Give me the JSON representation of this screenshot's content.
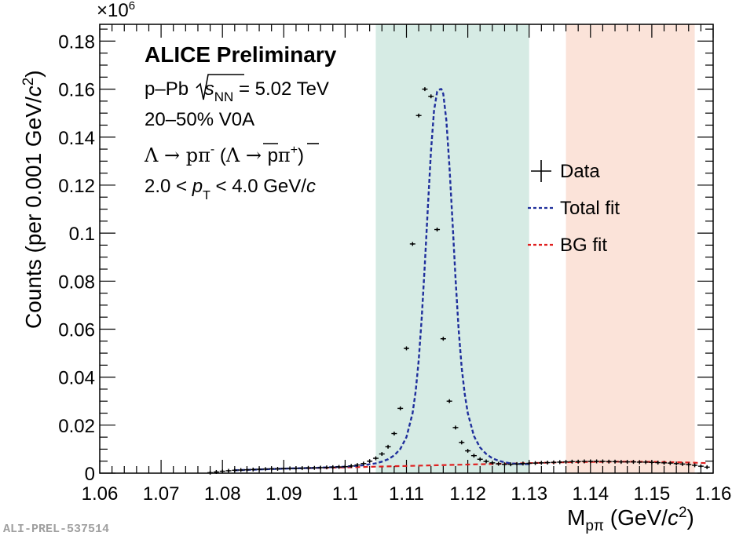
{
  "chart_data": {
    "type": "scatter",
    "xlabel_main": "M",
    "xlabel_sub": "pπ",
    "xlabel_unit_prefix": " (GeV/",
    "xlabel_unit_c": "c",
    "xlabel_unit_suffix": ")",
    "ylabel_main": "Counts (per 0.001 GeV/",
    "ylabel_c": "c",
    "ylabel_suffix": ")",
    "y_multiplier_prefix": "×10",
    "y_multiplier_exp": "6",
    "xlim": [
      1.06,
      1.16
    ],
    "ylim": [
      0,
      0.187
    ],
    "x_ticks": [
      "1.06",
      "1.07",
      "1.08",
      "1.09",
      "1.1",
      "1.11",
      "1.12",
      "1.13",
      "1.14",
      "1.15",
      "1.16"
    ],
    "y_ticks": [
      "0",
      "0.02",
      "0.04",
      "0.06",
      "0.08",
      "0.1",
      "0.12",
      "0.14",
      "0.16",
      "0.18"
    ],
    "annotations": {
      "title": "ALICE Preliminary",
      "system_prefix": "p–Pb ",
      "system_s": "s",
      "system_nn": "NN",
      "system_suffix": " = 5.02 TeV",
      "centrality": "20–50% V0A",
      "decay_lambda": "Λ → pπ",
      "decay_minus": "-",
      "decay_anti_open": " (",
      "decay_anti_lambda": "Λ",
      "decay_arrow": " → ",
      "decay_pbar": "p",
      "decay_piplus": "π",
      "decay_plus": "+",
      "decay_close": ")",
      "pt_prefix": "2.0 < ",
      "pt_p": "p",
      "pt_sub": "T",
      "pt_suffix": " < 4.0 GeV/",
      "pt_c": "c"
    },
    "bands": [
      {
        "name": "signal region",
        "x": [
          1.105,
          1.13
        ],
        "color": "#d6ebe4"
      },
      {
        "name": "sideband",
        "x": [
          1.136,
          1.157
        ],
        "color": "#fbe3d9"
      }
    ],
    "series": [
      {
        "name": "Data",
        "marker": "cross",
        "color": "#000000",
        "x": [
          1.078,
          1.079,
          1.08,
          1.081,
          1.082,
          1.083,
          1.084,
          1.085,
          1.086,
          1.087,
          1.088,
          1.089,
          1.09,
          1.091,
          1.092,
          1.093,
          1.094,
          1.095,
          1.096,
          1.097,
          1.098,
          1.099,
          1.1,
          1.101,
          1.102,
          1.103,
          1.104,
          1.105,
          1.106,
          1.107,
          1.108,
          1.109,
          1.11,
          1.111,
          1.112,
          1.113,
          1.114,
          1.115,
          1.116,
          1.117,
          1.118,
          1.119,
          1.12,
          1.121,
          1.122,
          1.123,
          1.124,
          1.125,
          1.126,
          1.127,
          1.128,
          1.129,
          1.13,
          1.131,
          1.132,
          1.133,
          1.134,
          1.135,
          1.136,
          1.137,
          1.138,
          1.139,
          1.14,
          1.141,
          1.142,
          1.143,
          1.144,
          1.145,
          1.146,
          1.147,
          1.148,
          1.149,
          1.15,
          1.151,
          1.152,
          1.153,
          1.154,
          1.155,
          1.156,
          1.157,
          1.158,
          1.159
        ],
        "y": [
          0.0002,
          0.0005,
          0.0008,
          0.001,
          0.0012,
          0.0013,
          0.0014,
          0.0015,
          0.0016,
          0.0017,
          0.0018,
          0.0018,
          0.0019,
          0.002,
          0.002,
          0.0021,
          0.0022,
          0.0022,
          0.0023,
          0.0024,
          0.0025,
          0.0026,
          0.0027,
          0.003,
          0.0034,
          0.004,
          0.005,
          0.0062,
          0.008,
          0.011,
          0.0165,
          0.027,
          0.052,
          0.0955,
          0.149,
          0.16,
          0.157,
          0.1015,
          0.056,
          0.03,
          0.019,
          0.0128,
          0.0093,
          0.0073,
          0.0058,
          0.0049,
          0.0043,
          0.0039,
          0.0037,
          0.0037,
          0.0038,
          0.004,
          0.0041,
          0.0042,
          0.0043,
          0.0044,
          0.0045,
          0.0046,
          0.0047,
          0.0048,
          0.0048,
          0.0049,
          0.0049,
          0.0049,
          0.0049,
          0.0048,
          0.0048,
          0.0047,
          0.0047,
          0.0047,
          0.0046,
          0.0046,
          0.0045,
          0.0044,
          0.0043,
          0.0042,
          0.004,
          0.0038,
          0.0036,
          0.0033,
          0.0029,
          0.0025
        ]
      },
      {
        "name": "Total fit",
        "style": "dashed",
        "color": "#1f2f9c",
        "x": [
          1.082,
          1.09,
          1.095,
          1.1,
          1.103,
          1.105,
          1.106,
          1.107,
          1.108,
          1.109,
          1.11,
          1.111,
          1.1115,
          1.112,
          1.1125,
          1.113,
          1.1135,
          1.114,
          1.1145,
          1.115,
          1.1155,
          1.1157,
          1.116,
          1.1165,
          1.117,
          1.1175,
          1.118,
          1.1185,
          1.119,
          1.1195,
          1.12,
          1.121,
          1.122,
          1.123,
          1.124,
          1.125,
          1.126,
          1.127,
          1.128,
          1.129,
          1.13
        ],
        "y": [
          0.0012,
          0.0019,
          0.0022,
          0.0027,
          0.0033,
          0.0041,
          0.0048,
          0.0058,
          0.0074,
          0.0101,
          0.015,
          0.025,
          0.034,
          0.047,
          0.065,
          0.087,
          0.111,
          0.134,
          0.151,
          0.159,
          0.16,
          0.16,
          0.158,
          0.147,
          0.128,
          0.105,
          0.081,
          0.06,
          0.044,
          0.033,
          0.025,
          0.0155,
          0.0107,
          0.008,
          0.0062,
          0.0052,
          0.0045,
          0.0041,
          0.0039,
          0.0038,
          0.0038
        ]
      },
      {
        "name": "BG fit",
        "style": "dashed",
        "color": "#e02020",
        "x": [
          1.094,
          1.1,
          1.105,
          1.11,
          1.115,
          1.12,
          1.125,
          1.13,
          1.135,
          1.14,
          1.145,
          1.15,
          1.155,
          1.159
        ],
        "y": [
          0.0021,
          0.0024,
          0.0027,
          0.003,
          0.0033,
          0.0036,
          0.0039,
          0.0042,
          0.0045,
          0.0047,
          0.0048,
          0.0047,
          0.0045,
          0.0042
        ]
      }
    ],
    "legend": [
      {
        "label": "Data",
        "style": "cross",
        "color": "#000000"
      },
      {
        "label": "Total fit",
        "style": "dashed",
        "color": "#1f2f9c"
      },
      {
        "label": "BG fit",
        "style": "dashed",
        "color": "#e02020"
      }
    ],
    "footer_id": "ALI-PREL-537514"
  }
}
